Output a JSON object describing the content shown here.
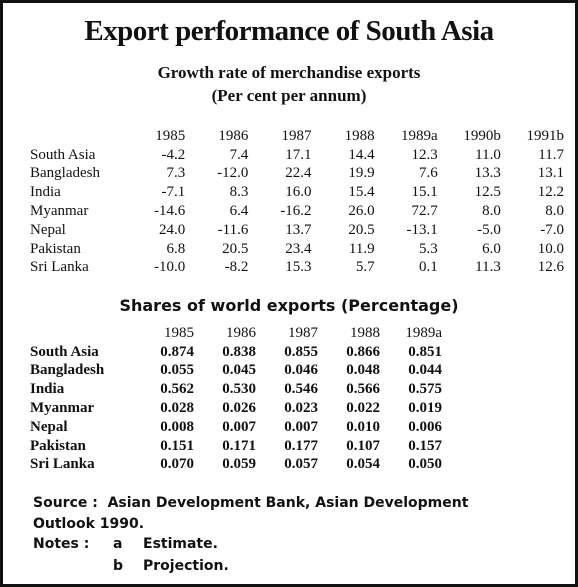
{
  "title": "Export performance of South Asia",
  "growth": {
    "title": "Growth rate of merchandise exports",
    "subtitle": "(Per cent per annum)",
    "header": [
      "1985",
      "1986",
      "1987",
      "1988",
      "1989a",
      "1990b",
      "1991b"
    ],
    "rows": [
      [
        "South Asia",
        "-4.2",
        "7.4",
        "17.1",
        "14.4",
        "12.3",
        "11.0",
        "11.7"
      ],
      [
        "Bangladesh",
        "7.3",
        "-12.0",
        "22.4",
        "19.9",
        "7.6",
        "13.3",
        "13.1"
      ],
      [
        "India",
        "-7.1",
        "8.3",
        "16.0",
        "15.4",
        "15.1",
        "12.5",
        "12.2"
      ],
      [
        "Myanmar",
        "-14.6",
        "6.4",
        "-16.2",
        "26.0",
        "72.7",
        "8.0",
        "8.0"
      ],
      [
        "Nepal",
        "24.0",
        "-11.6",
        "13.7",
        "20.5",
        "-13.1",
        "-5.0",
        "-7.0"
      ],
      [
        "Pakistan",
        "6.8",
        "20.5",
        "23.4",
        "11.9",
        "5.3",
        "6.0",
        "10.0"
      ],
      [
        "Sri Lanka",
        "-10.0",
        "-8.2",
        "15.3",
        "5.7",
        "0.1",
        "11.3",
        "12.6"
      ]
    ]
  },
  "shares": {
    "title": "Shares of world exports (Percentage)",
    "header": [
      "1985",
      "1986",
      "1987",
      "1988",
      "1989a"
    ],
    "rows": [
      [
        "South Asia",
        "0.874",
        "0.838",
        "0.855",
        "0.866",
        "0.851"
      ],
      [
        "Bangladesh",
        "0.055",
        "0.045",
        "0.046",
        "0.048",
        "0.044"
      ],
      [
        "India",
        "0.562",
        "0.530",
        "0.546",
        "0.566",
        "0.575"
      ],
      [
        "Myanmar",
        "0.028",
        "0.026",
        "0.023",
        "0.022",
        "0.019"
      ],
      [
        "Nepal",
        "0.008",
        "0.007",
        "0.007",
        "0.010",
        "0.006"
      ],
      [
        "Pakistan",
        "0.151",
        "0.171",
        "0.177",
        "0.107",
        "0.157"
      ],
      [
        "Sri Lanka",
        "0.070",
        "0.059",
        "0.057",
        "0.054",
        "0.050"
      ]
    ]
  },
  "source": {
    "label": "Source :",
    "text": "Asian Development Bank, Asian Development Outlook 1990."
  },
  "notes": {
    "label": "Notes :",
    "items": [
      {
        "mark": "a",
        "text": "Estimate."
      },
      {
        "mark": "b",
        "text": "Projection."
      }
    ]
  }
}
